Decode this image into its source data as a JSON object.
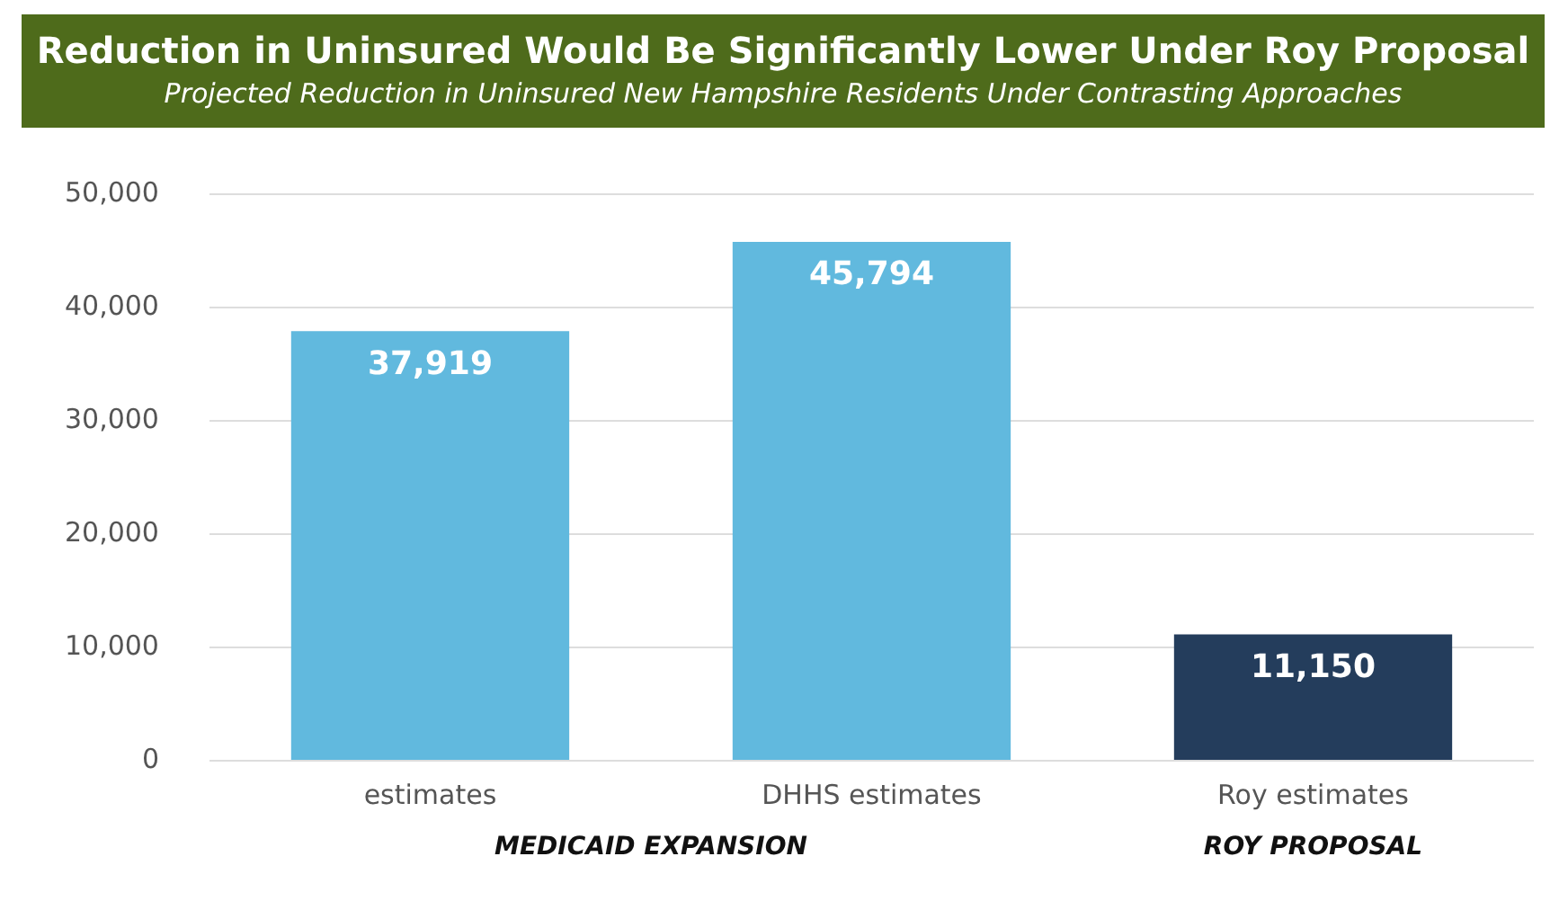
{
  "chart_data": {
    "type": "bar",
    "title": "Reduction in Uninsured Would Be Significantly Lower Under Roy Proposal",
    "subtitle": "Projected Reduction in Uninsured New Hampshire Residents Under Contrasting Approaches",
    "categories": [
      "estimates",
      "DHHS estimates",
      "Roy estimates"
    ],
    "values": [
      37919,
      45794,
      11150
    ],
    "colors": [
      "#61b9de",
      "#61b9de",
      "#243d5c"
    ],
    "ylim": [
      0,
      50000
    ],
    "yticks": [
      {
        "value": 0,
        "label": "0"
      },
      {
        "value": 10000,
        "label": "10,000"
      },
      {
        "value": 20000,
        "label": "20,000"
      },
      {
        "value": 30000,
        "label": "30,000"
      },
      {
        "value": 40000,
        "label": "40,000"
      },
      {
        "value": 50000,
        "label": "50,000"
      }
    ],
    "grid": "y",
    "legend": false,
    "value_labels": [
      "37,919",
      "45,794",
      "11,150"
    ],
    "annotations": [
      "MEDICAID EXPANSION",
      "ROY PROPOSAL"
    ]
  }
}
